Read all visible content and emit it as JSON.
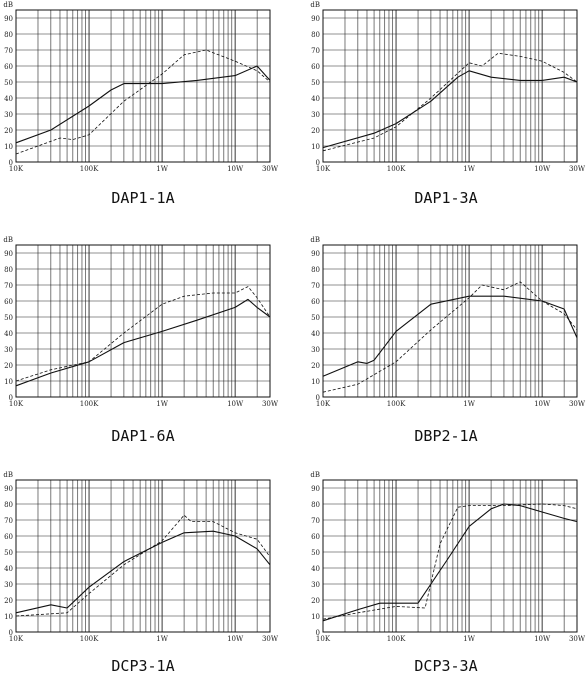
{
  "figure": {
    "y_unit": "dB"
  },
  "chart_data": [
    {
      "type": "line",
      "title": "DAP1-1A",
      "x_ticks": [
        "10K",
        "100K",
        "1W",
        "10W",
        "30W"
      ],
      "y_ticks": [
        "0",
        "10",
        "20",
        "30",
        "40",
        "50",
        "60",
        "70",
        "80",
        "90"
      ],
      "ylim": [
        0,
        95
      ],
      "x_scale": "log",
      "grid": true,
      "series": [
        {
          "style": "solid",
          "points": [
            [
              "10K",
              12
            ],
            [
              "30K",
              20
            ],
            [
              "100K",
              35
            ],
            [
              "200K",
              45
            ],
            [
              "300K",
              49
            ],
            [
              "1W",
              49
            ],
            [
              "3W",
              51
            ],
            [
              "10W",
              54
            ],
            [
              "20W",
              60
            ],
            [
              "30W",
              51
            ]
          ]
        },
        {
          "style": "dashed",
          "points": [
            [
              "10K",
              5
            ],
            [
              "40K",
              15
            ],
            [
              "60K",
              14
            ],
            [
              "100K",
              17
            ],
            [
              "300K",
              38
            ],
            [
              "1W",
              55
            ],
            [
              "2W",
              67
            ],
            [
              "4W",
              70
            ],
            [
              "10W",
              63
            ],
            [
              "20W",
              57
            ],
            [
              "30W",
              50
            ]
          ]
        }
      ]
    },
    {
      "type": "line",
      "title": "DAP1-3A",
      "x_ticks": [
        "10K",
        "100K",
        "1W",
        "10W",
        "30W"
      ],
      "y_ticks": [
        "0",
        "10",
        "20",
        "30",
        "40",
        "50",
        "60",
        "70",
        "80",
        "90"
      ],
      "ylim": [
        0,
        95
      ],
      "x_scale": "log",
      "grid": true,
      "series": [
        {
          "style": "solid",
          "points": [
            [
              "10K",
              9
            ],
            [
              "50K",
              18
            ],
            [
              "100K",
              24
            ],
            [
              "300K",
              38
            ],
            [
              "700K",
              53
            ],
            [
              "1W",
              57
            ],
            [
              "2W",
              53
            ],
            [
              "5W",
              51
            ],
            [
              "10W",
              51
            ],
            [
              "20W",
              53
            ],
            [
              "30W",
              50
            ]
          ]
        },
        {
          "style": "dashed",
          "points": [
            [
              "10K",
              7
            ],
            [
              "50K",
              15
            ],
            [
              "100K",
              22
            ],
            [
              "300K",
              40
            ],
            [
              "1W",
              62
            ],
            [
              "1.5W",
              60
            ],
            [
              "2.5W",
              68
            ],
            [
              "5W",
              66
            ],
            [
              "10W",
              63
            ],
            [
              "20W",
              56
            ],
            [
              "30W",
              50
            ]
          ]
        }
      ]
    },
    {
      "type": "line",
      "title": "DAP1-6A",
      "x_ticks": [
        "10K",
        "100K",
        "1W",
        "10W",
        "30W"
      ],
      "y_ticks": [
        "0",
        "10",
        "20",
        "30",
        "40",
        "50",
        "60",
        "70",
        "80",
        "90"
      ],
      "ylim": [
        0,
        95
      ],
      "x_scale": "log",
      "grid": true,
      "series": [
        {
          "style": "solid",
          "points": [
            [
              "10K",
              7
            ],
            [
              "30K",
              15
            ],
            [
              "100K",
              22
            ],
            [
              "300K",
              34
            ],
            [
              "1W",
              41
            ],
            [
              "3W",
              48
            ],
            [
              "10W",
              56
            ],
            [
              "15W",
              61
            ],
            [
              "20W",
              56
            ],
            [
              "30W",
              50
            ]
          ]
        },
        {
          "style": "dashed",
          "points": [
            [
              "10K",
              10
            ],
            [
              "30K",
              17
            ],
            [
              "100K",
              22
            ],
            [
              "300K",
              40
            ],
            [
              "1W",
              58
            ],
            [
              "2W",
              63
            ],
            [
              "5W",
              65
            ],
            [
              "10W",
              65
            ],
            [
              "15W",
              69
            ],
            [
              "20W",
              62
            ],
            [
              "30W",
              50
            ]
          ]
        }
      ]
    },
    {
      "type": "line",
      "title": "DBP2-1A",
      "x_ticks": [
        "10K",
        "100K",
        "1W",
        "10W",
        "30W"
      ],
      "y_ticks": [
        "0",
        "10",
        "20",
        "30",
        "40",
        "50",
        "60",
        "70",
        "80",
        "90"
      ],
      "ylim": [
        0,
        95
      ],
      "x_scale": "log",
      "grid": true,
      "series": [
        {
          "style": "solid",
          "points": [
            [
              "10K",
              13
            ],
            [
              "30K",
              22
            ],
            [
              "40K",
              21
            ],
            [
              "50K",
              23
            ],
            [
              "100K",
              41
            ],
            [
              "300K",
              58
            ],
            [
              "1W",
              63
            ],
            [
              "3W",
              63
            ],
            [
              "10W",
              60
            ],
            [
              "20W",
              55
            ],
            [
              "30W",
              37
            ]
          ]
        },
        {
          "style": "dashed",
          "points": [
            [
              "10K",
              3
            ],
            [
              "30K",
              8
            ],
            [
              "100K",
              22
            ],
            [
              "300K",
              42
            ],
            [
              "1W",
              62
            ],
            [
              "1.5W",
              70
            ],
            [
              "3W",
              67
            ],
            [
              "5W",
              72
            ],
            [
              "10W",
              60
            ],
            [
              "20W",
              52
            ],
            [
              "30W",
              42
            ]
          ]
        }
      ]
    },
    {
      "type": "line",
      "title": "DCP3-1A",
      "x_ticks": [
        "10K",
        "100K",
        "1W",
        "10W",
        "30W"
      ],
      "y_ticks": [
        "0",
        "10",
        "20",
        "30",
        "40",
        "50",
        "60",
        "70",
        "80",
        "90"
      ],
      "ylim": [
        0,
        95
      ],
      "x_scale": "log",
      "grid": true,
      "series": [
        {
          "style": "solid",
          "points": [
            [
              "10K",
              12
            ],
            [
              "30K",
              17
            ],
            [
              "50K",
              15
            ],
            [
              "100K",
              28
            ],
            [
              "300K",
              44
            ],
            [
              "1W",
              56
            ],
            [
              "2W",
              62
            ],
            [
              "5W",
              63
            ],
            [
              "10W",
              60
            ],
            [
              "20W",
              52
            ],
            [
              "30W",
              42
            ]
          ]
        },
        {
          "style": "dashed",
          "points": [
            [
              "10K",
              10
            ],
            [
              "50K",
              12
            ],
            [
              "100K",
              24
            ],
            [
              "300K",
              42
            ],
            [
              "1W",
              57
            ],
            [
              "2W",
              73
            ],
            [
              "2.5W",
              69
            ],
            [
              "5W",
              69
            ],
            [
              "10W",
              62
            ],
            [
              "20W",
              58
            ],
            [
              "30W",
              47
            ]
          ]
        }
      ]
    },
    {
      "type": "line",
      "title": "DCP3-3A",
      "x_ticks": [
        "10K",
        "100K",
        "1W",
        "10W",
        "30W"
      ],
      "y_ticks": [
        "0",
        "10",
        "20",
        "30",
        "40",
        "50",
        "60",
        "70",
        "80",
        "90"
      ],
      "ylim": [
        0,
        95
      ],
      "x_scale": "log",
      "grid": true,
      "series": [
        {
          "style": "solid",
          "points": [
            [
              "10K",
              7
            ],
            [
              "30K",
              14
            ],
            [
              "60K",
              18
            ],
            [
              "100K",
              18
            ],
            [
              "200K",
              18
            ],
            [
              "500K",
              45
            ],
            [
              "1W",
              66
            ],
            [
              "2W",
              77
            ],
            [
              "3W",
              80
            ],
            [
              "5W",
              79
            ],
            [
              "10W",
              75
            ],
            [
              "20W",
              71
            ],
            [
              "30W",
              69
            ]
          ]
        },
        {
          "style": "dashed",
          "points": [
            [
              "10K",
              8
            ],
            [
              "30K",
              12
            ],
            [
              "100K",
              16
            ],
            [
              "250K",
              15
            ],
            [
              "400K",
              55
            ],
            [
              "700K",
              78
            ],
            [
              "1W",
              79
            ],
            [
              "3W",
              79
            ],
            [
              "10W",
              80
            ],
            [
              "20W",
              79
            ],
            [
              "30W",
              77
            ]
          ]
        }
      ]
    }
  ]
}
